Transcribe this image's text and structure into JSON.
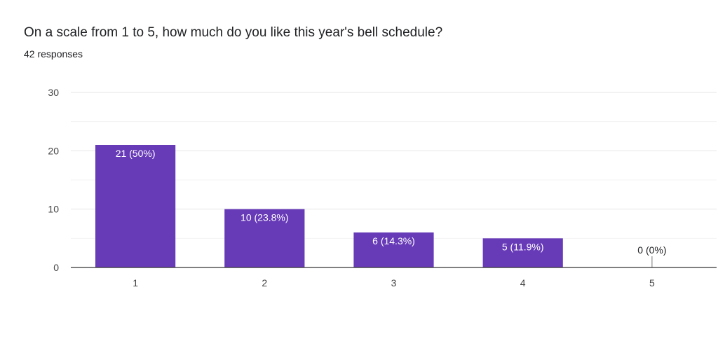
{
  "header": {
    "question": "On a scale from 1 to 5, how much do you like this year's bell schedule?",
    "responses": "42 responses"
  },
  "colors": {
    "bar": "#673ab7",
    "grid": "#e6e6e6",
    "minor_grid": "#f3f3f3",
    "axis": "#333333"
  },
  "chart_data": {
    "type": "bar",
    "title": "On a scale from 1 to 5, how much do you like this year's bell schedule?",
    "subtitle": "42 responses",
    "categories": [
      "1",
      "2",
      "3",
      "4",
      "5"
    ],
    "values": [
      21,
      10,
      6,
      5,
      0
    ],
    "data_labels": [
      "21 (50%)",
      "10 (23.8%)",
      "6 (14.3%)",
      "5 (11.9%)",
      "0 (0%)"
    ],
    "ylim": [
      0,
      30
    ],
    "yticks": [
      "0",
      "10",
      "20",
      "30"
    ],
    "grid": true,
    "legend": "none",
    "xlabel": "",
    "ylabel": ""
  }
}
